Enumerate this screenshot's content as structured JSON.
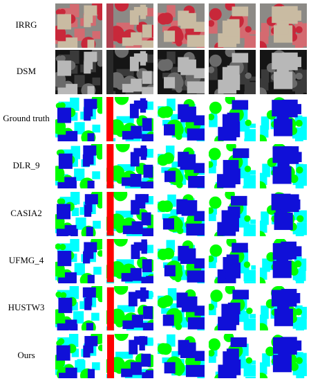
{
  "row_labels": [
    "IRRG",
    "DSM",
    "Ground truth",
    "DLR_9",
    "CASIA2",
    "UFMG_4",
    "HUSTW3",
    "Ours"
  ]
}
